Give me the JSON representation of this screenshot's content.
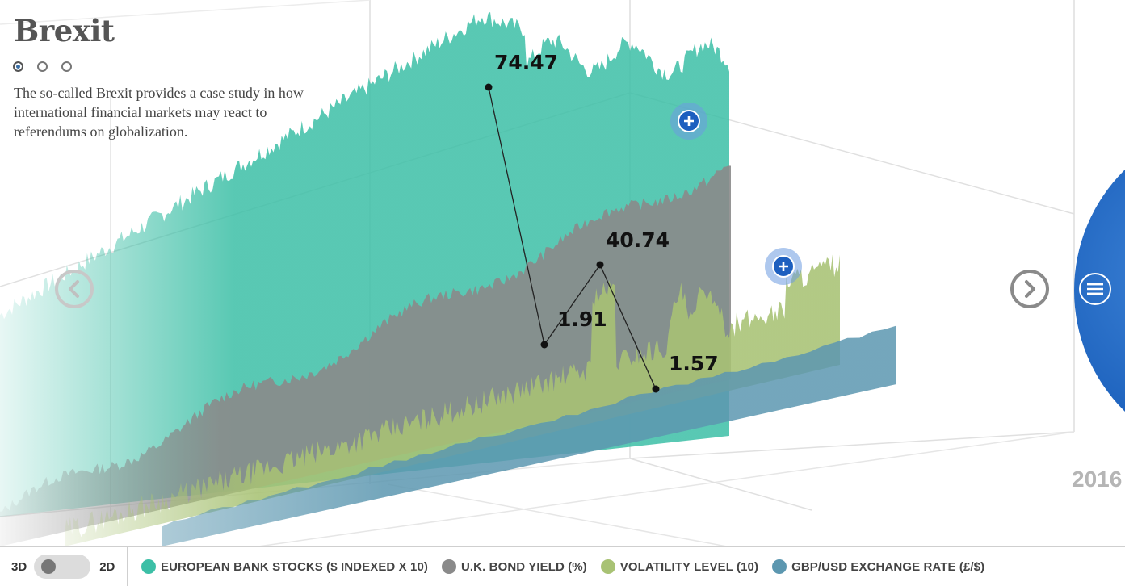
{
  "title": "Brexit",
  "description": "The so-called Brexit provides a case study in how international financial markets may react to referendums on globalization.",
  "pagination": {
    "pages": 3,
    "active": 0
  },
  "year_label": "2016",
  "toggle": {
    "left": "3D",
    "right": "2D",
    "state": "3D"
  },
  "legend": [
    {
      "label": "EUROPEAN BANK STOCKS ($ INDEXED X 10)",
      "color": "#3cbfa6"
    },
    {
      "label": "U.K. BOND YIELD (%)",
      "color": "#8a8a8a"
    },
    {
      "label": "VOLATILITY LEVEL (10)",
      "color": "#a8c274"
    },
    {
      "label": "GBP/USD EXCHANGE RATE (£/$)",
      "color": "#5c97b0"
    }
  ],
  "icons": {
    "prev": "chevron-left-icon",
    "next": "chevron-right-icon",
    "expand": "plus-icon",
    "menu": "menu-icon"
  },
  "chart_data": {
    "type": "area",
    "style": "3d-ribbon",
    "series": [
      {
        "name": "EUROPEAN BANK STOCKS ($ INDEXED X 10)",
        "color": "#3cbfa6",
        "highlight_label": "74.47"
      },
      {
        "name": "U.K. BOND YIELD (%)",
        "color": "#8a8a8a",
        "highlight_label": "1.91"
      },
      {
        "name": "VOLATILITY LEVEL (10)",
        "color": "#a8c274",
        "highlight_label": "40.74"
      },
      {
        "name": "GBP/USD EXCHANGE RATE (£/$)",
        "color": "#5c97b0",
        "highlight_label": "1.57"
      }
    ],
    "year": "2016"
  }
}
